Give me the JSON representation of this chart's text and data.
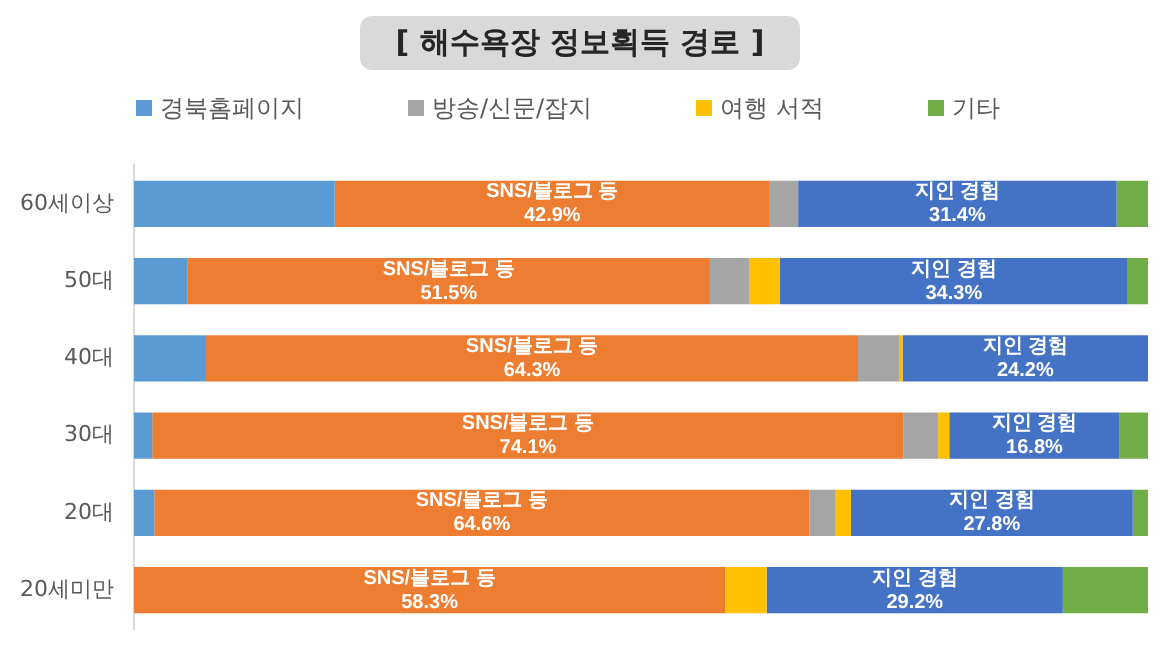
{
  "chart_data": {
    "type": "bar",
    "orientation": "horizontal",
    "stacked": true,
    "title": "[ 해수욕장 정보획득 경로 ]",
    "categories": [
      "60세이상",
      "50대",
      "40대",
      "30대",
      "20대",
      "20세미만"
    ],
    "series": [
      {
        "name": "경북홈페이지",
        "color": "#5b9bd5",
        "values": [
          19.8,
          5.3,
          7.1,
          1.8,
          2.0,
          0
        ]
      },
      {
        "name": "SNS/블로그 등",
        "color": "#ed7d31",
        "values": [
          42.9,
          51.5,
          64.3,
          74.1,
          64.6,
          58.3
        ],
        "value_labels": [
          "42.9%",
          "51.5%",
          "64.3%",
          "74.1%",
          "64.6%",
          "58.3%"
        ]
      },
      {
        "name": "방송/신문/잡지",
        "color": "#a5a5a5",
        "values": [
          2.8,
          3.9,
          4.1,
          3.4,
          2.6,
          0
        ]
      },
      {
        "name": "여행 서적",
        "color": "#ffc000",
        "values": [
          0,
          3.0,
          0.3,
          1.1,
          1.5,
          4.1
        ]
      },
      {
        "name": "지인 경험",
        "color": "#4472c4",
        "values": [
          31.4,
          34.3,
          24.2,
          16.8,
          27.8,
          29.2
        ],
        "value_labels": [
          "31.4%",
          "34.3%",
          "24.2%",
          "16.8%",
          "27.8%",
          "29.2%"
        ]
      },
      {
        "name": "기타",
        "color": "#70ad47",
        "values": [
          3.1,
          2.0,
          0,
          2.8,
          1.5,
          8.4
        ]
      }
    ],
    "xlim": [
      0,
      100
    ],
    "tick_labels": "y",
    "legend": "top"
  }
}
